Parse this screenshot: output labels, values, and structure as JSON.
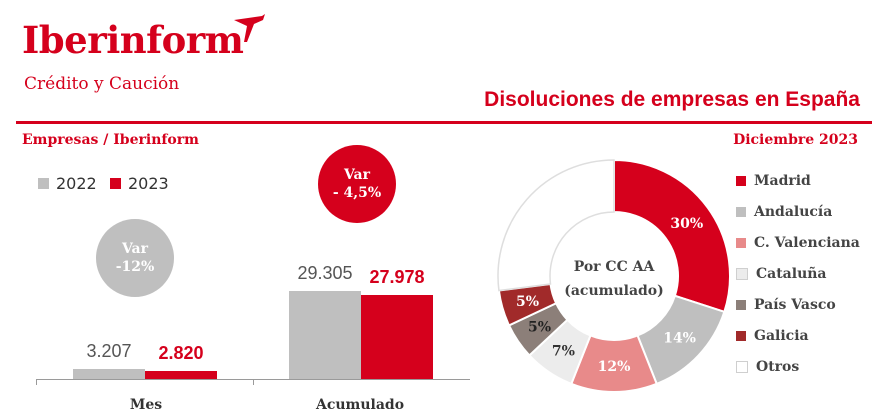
{
  "header": {
    "brand": "Iberinform",
    "subtitle": "Crédito y Caución",
    "title": "Disoluciones de empresas en España",
    "section_left": "Empresas / Iberinform",
    "section_right": "Diciembre 2023"
  },
  "colors": {
    "red": "#d5001c",
    "gray": "#bfbfbf"
  },
  "chart_data": [
    {
      "type": "bar",
      "categories": [
        "Mes",
        "Acumulado"
      ],
      "series": [
        {
          "name": "2022",
          "color": "#bfbfbf",
          "values": [
            3207,
            29305
          ],
          "labels": [
            "3.207",
            "29.305"
          ]
        },
        {
          "name": "2023",
          "color": "#d5001c",
          "values": [
            2820,
            27978
          ],
          "labels": [
            "2.820",
            "27.978"
          ]
        }
      ],
      "annotations": [
        {
          "title": "Var",
          "value": "-12%",
          "category": "Mes",
          "color": "#bfbfbf"
        },
        {
          "title": "Var",
          "value": "- 4,5%",
          "category": "Acumulado",
          "color": "#d5001c"
        }
      ]
    },
    {
      "type": "pie",
      "title": "Por CC AA",
      "subtitle": "(acumulado)",
      "slices": [
        {
          "name": "Madrid",
          "value": 30,
          "label": "30%",
          "color": "#d5001c"
        },
        {
          "name": "Andalucía",
          "value": 14,
          "label": "14%",
          "color": "#bfbfbf"
        },
        {
          "name": "C. Valenciana",
          "value": 12,
          "label": "12%",
          "color": "#e88a8a"
        },
        {
          "name": "Cataluña",
          "value": 7,
          "label": "7%",
          "color": "#ececec"
        },
        {
          "name": "País Vasco",
          "value": 5,
          "label": "5%",
          "color": "#8c7f79"
        },
        {
          "name": "Galicia",
          "value": 5,
          "label": "5%",
          "color": "#a12a2a"
        },
        {
          "name": "Otros",
          "value": 27,
          "label": "",
          "color": "#ffffff"
        }
      ]
    }
  ]
}
